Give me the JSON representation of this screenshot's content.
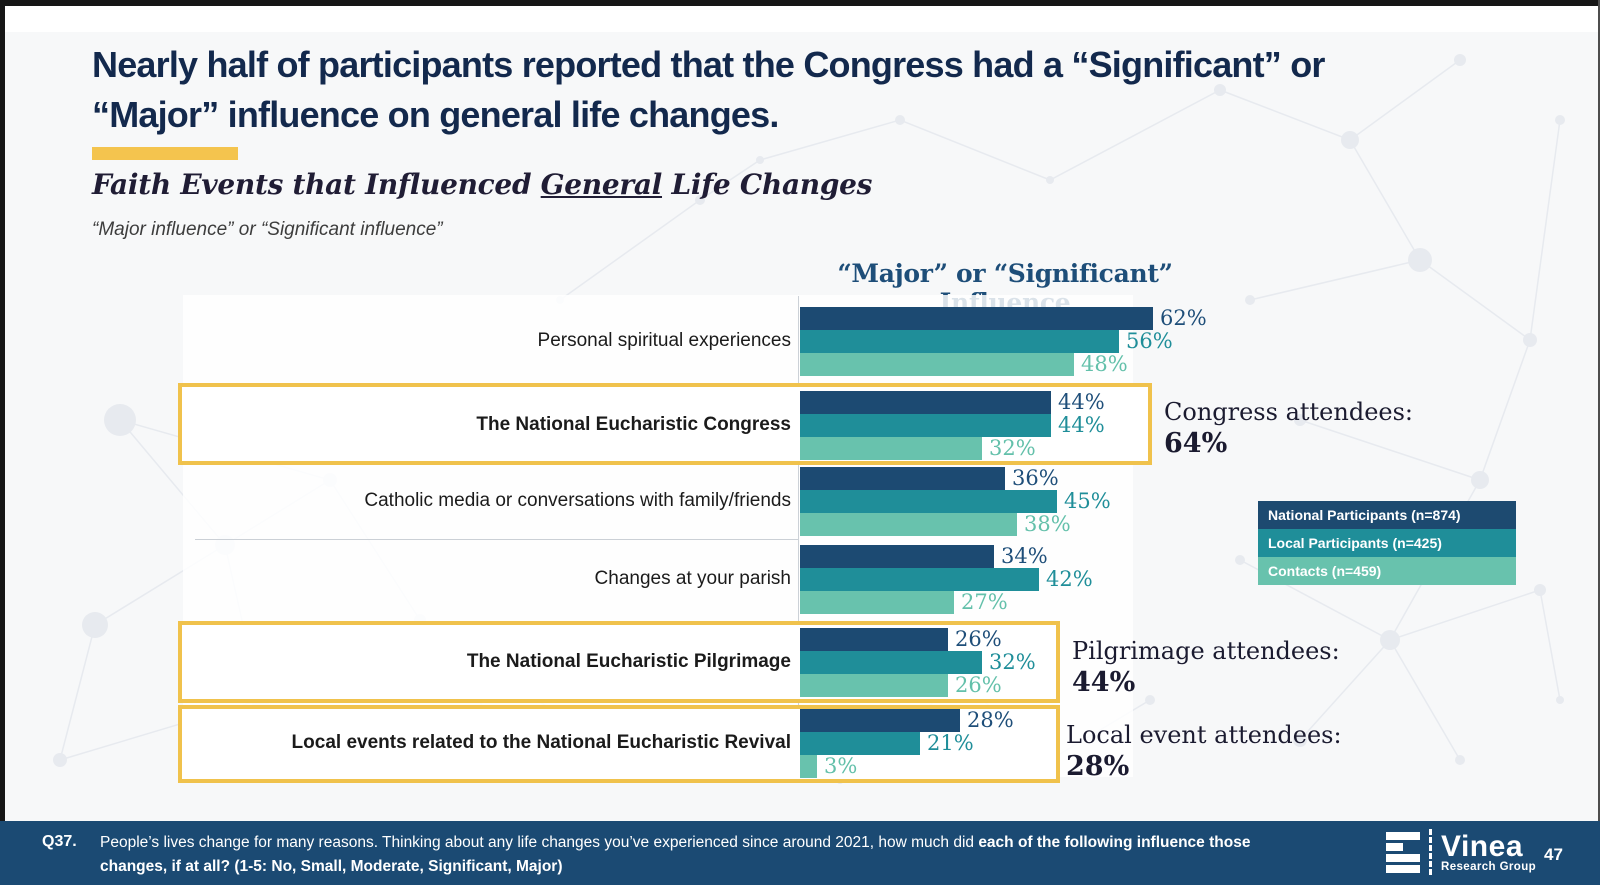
{
  "slide": {
    "title_line1": "Nearly half of participants reported that the Congress had a “Significant” or",
    "title_line2": "“Major” influence on general life changes.",
    "subtitle_prefix": "Faith Events that Influenced ",
    "subtitle_underlined": "General",
    "subtitle_suffix": " Life Changes",
    "qualifier": "“Major influence” or “Significant influence”",
    "page_number": "47"
  },
  "chart_data": {
    "type": "bar",
    "orientation": "horizontal",
    "title": "“Major” or “Significant” Influence",
    "categories": [
      "Personal spiritual experiences",
      "The National Eucharistic Congress",
      "Catholic media or conversations with family/friends",
      "Changes at your parish",
      "The National Eucharistic Pilgrimage",
      "Local events related to the National Eucharistic Revival"
    ],
    "series": [
      {
        "name": "National Participants (n=874)",
        "color": "#1c4a72",
        "label_color": "#1e4e79",
        "values": [
          62,
          44,
          36,
          34,
          26,
          28
        ]
      },
      {
        "name": "Local Participants (n=425)",
        "color": "#1f8e99",
        "label_color": "#1f8e99",
        "values": [
          56,
          44,
          45,
          42,
          32,
          21
        ]
      },
      {
        "name": "Contacts (n=459)",
        "color": "#68c2ad",
        "label_color": "#63c0aa",
        "values": [
          48,
          32,
          38,
          27,
          26,
          3
        ]
      }
    ],
    "value_suffix": "%",
    "xlim": [
      0,
      70
    ],
    "grid": false,
    "legend_position": "right",
    "highlighted_categories": [
      "The National Eucharistic Congress",
      "The National Eucharistic Pilgrimage",
      "Local events related to the National Eucharistic Revival"
    ]
  },
  "legend": {
    "items": [
      {
        "label": "National Participants (n=874)",
        "color": "#1d4a70"
      },
      {
        "label": "Local Participants (n=425)",
        "color": "#1f8e99"
      },
      {
        "label": "Contacts (n=459)",
        "color": "#68c2ad"
      }
    ]
  },
  "annotations": [
    {
      "label": "Congress attendees:",
      "value": "64%"
    },
    {
      "label": "Pilgrimage attendees:",
      "value": "44%"
    },
    {
      "label": "Local event attendees:",
      "value": "28%"
    }
  ],
  "footer": {
    "q_label": "Q37.",
    "line1_normal": "People’s lives change for many reasons. Thinking about any life changes you’ve experienced since around 2021, how much did ",
    "line1_bold": "each of the following influence those",
    "line2_bold": "changes, if at all? (1-5: No, Small, Moderate, Significant, Major)",
    "logo_name": "Vinea",
    "logo_subtitle": "Research Group"
  },
  "colors": {
    "title_text": "#13294d",
    "accent_yellow": "#f4c44e",
    "highlight_border": "#f0c24c",
    "chart_title": "#1e4e79",
    "footer_bg": "#1b4a73",
    "slide_bg": "#f7f8f9"
  }
}
